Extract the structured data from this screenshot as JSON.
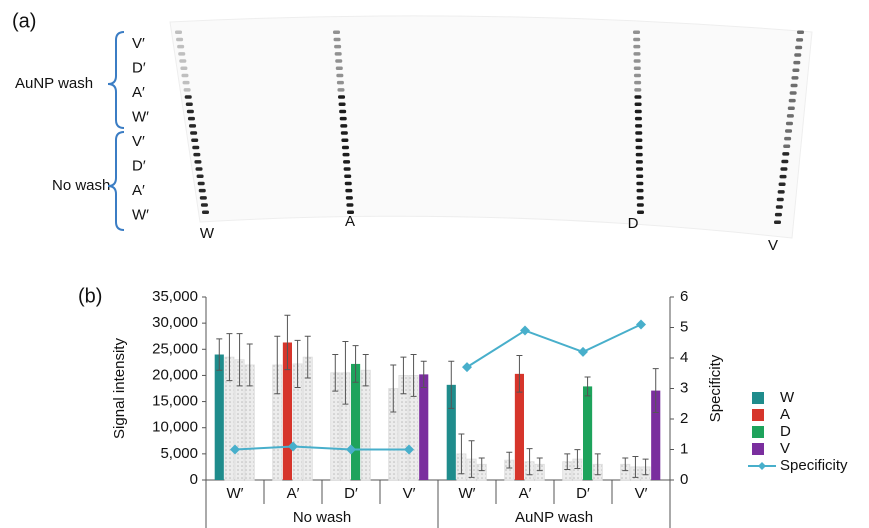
{
  "panel_a": {
    "label": "(a)",
    "groups": [
      {
        "name": "AuNP wash",
        "rows": [
          "V′",
          "D′",
          "A′",
          "W′"
        ]
      },
      {
        "name": "No wash",
        "rows": [
          "V′",
          "D′",
          "A′",
          "W′"
        ]
      }
    ],
    "lanes": [
      "W",
      "A",
      "D",
      "V"
    ]
  },
  "chart_data": {
    "type": "bar",
    "panel_label": "(b)",
    "y_label": "Signal intensity",
    "y2_label": "Specificity",
    "categories": [
      "W′",
      "A′",
      "D′",
      "V′",
      "W′",
      "A′",
      "D′",
      "V′"
    ],
    "groups": [
      "No wash",
      "AuNP wash"
    ],
    "muted_color": "#dcdcdc",
    "series": [
      {
        "name": "W",
        "color": "#1f8c8c",
        "values": [
          24000,
          22000,
          20500,
          17500,
          18200,
          3800,
          3500,
          3000
        ],
        "errors": [
          3000,
          5500,
          3500,
          4500,
          4500,
          1500,
          1500,
          1200
        ]
      },
      {
        "name": "A",
        "color": "#d6352b",
        "values": [
          23500,
          26300,
          20500,
          20000,
          5000,
          20300,
          4000,
          2500
        ],
        "errors": [
          4500,
          5200,
          6000,
          3500,
          3800,
          3500,
          1800,
          2000
        ]
      },
      {
        "name": "D",
        "color": "#1ea35c",
        "values": [
          23000,
          22200,
          22200,
          20000,
          4000,
          3500,
          17900,
          2500
        ],
        "errors": [
          5000,
          4500,
          3500,
          4000,
          3500,
          2500,
          1800,
          1500
        ]
      },
      {
        "name": "V",
        "color": "#7a2e9e",
        "values": [
          22000,
          23500,
          21000,
          20200,
          3000,
          3000,
          3000,
          17100
        ],
        "errors": [
          4000,
          4000,
          3000,
          2500,
          1200,
          1200,
          2000,
          4200
        ]
      },
      {
        "name": "Specificity",
        "color": "#48afcb",
        "axis": "y2",
        "values": [
          1.0,
          1.1,
          1.0,
          1.0,
          3.7,
          4.9,
          4.2,
          5.1
        ]
      }
    ],
    "ylim": [
      0,
      35000
    ],
    "yticks": [
      0,
      {
        "value": 5000,
        "label": "5,000"
      },
      {
        "value": 10000,
        "label": "10,000"
      },
      {
        "value": 15000,
        "label": "15,000"
      },
      {
        "value": 20000,
        "label": "20,000"
      },
      {
        "value": 25000,
        "label": "25,000"
      },
      {
        "value": 30000,
        "label": "30,000"
      },
      {
        "value": 35000,
        "label": "35,000"
      }
    ],
    "y2lim": [
      0,
      6
    ],
    "y2ticks": [
      0,
      1,
      2,
      3,
      4,
      5,
      6
    ],
    "legend": "right"
  }
}
